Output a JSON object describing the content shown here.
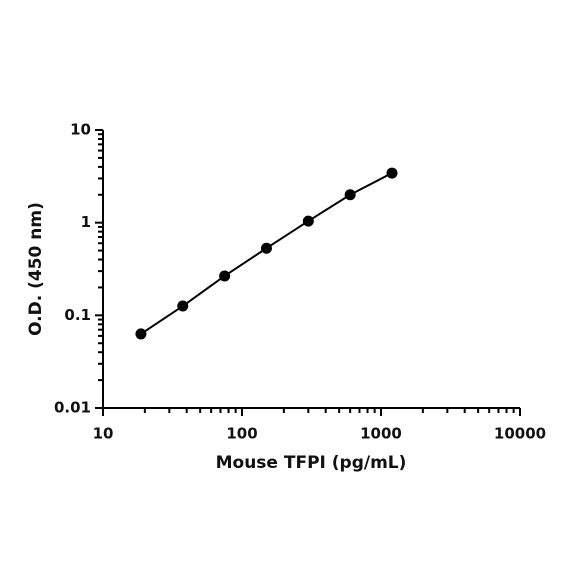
{
  "chart_data": {
    "type": "scatter",
    "x_label": "Mouse TFPI (pg/mL)",
    "y_label": "O.D. (450 nm)",
    "x_log": true,
    "y_log": true,
    "minor_ticks": true,
    "connect_points": true,
    "xlim": [
      10,
      10000
    ],
    "xticks": [
      10,
      100,
      1000,
      10000
    ],
    "ylim": [
      0.01,
      10
    ],
    "yticks": [
      0.01,
      0.1,
      1,
      10
    ],
    "series": [
      {
        "color": "#000000",
        "x": [
          18.75,
          37.5,
          75,
          150,
          300,
          600,
          1200
        ],
        "values": [
          0.063,
          0.126,
          0.266,
          0.53,
          1.04,
          2.0,
          3.43
        ]
      }
    ]
  }
}
